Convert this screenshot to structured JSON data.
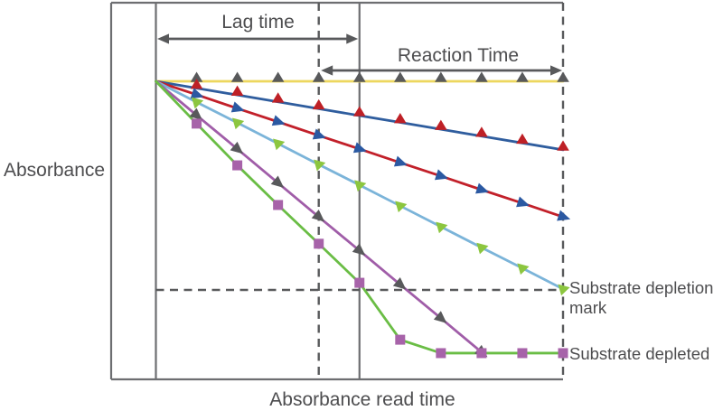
{
  "labels": {
    "y_axis": "Absorbance",
    "x_axis": "Absorbance read time",
    "lag_time": "Lag time",
    "reaction_time": "Reaction Time",
    "depletion_mark": "Substrate depletion mark",
    "depleted": "Substrate depleted"
  },
  "colors": {
    "frame": "#6D6E71",
    "annotation": "#58595B",
    "text": "#4D4D4F"
  },
  "chart_data": {
    "type": "line",
    "title": "",
    "xlabel": "Absorbance read time",
    "ylabel": "Absorbance",
    "x_range_steps": [
      0,
      10
    ],
    "y_range_arbitrary_units": [
      0,
      110
    ],
    "grid": false,
    "legend": "none",
    "annotations": {
      "lag_time_span_steps": [
        0,
        5
      ],
      "reaction_time_span_steps": [
        4,
        10
      ],
      "dashed_vline_step": 4,
      "solid_vline_step": 5,
      "right_edge_dashed_step": 10,
      "substrate_depletion_mark_level": 30,
      "substrate_depleted_level": 8.8
    },
    "series": [
      {
        "name": "flat-line-yellow-gray-up-triangles",
        "line_color": "#EDD75E",
        "marker": "triangle-up",
        "marker_color": "#58595B",
        "marker_rotation_deg": 0,
        "x": [
          0,
          1,
          2,
          3,
          4,
          5,
          6,
          7,
          8,
          9,
          10
        ],
        "values": [
          100,
          100,
          100,
          100,
          100,
          100,
          100,
          100,
          100,
          100,
          100
        ]
      },
      {
        "name": "slow-decline-blue-red-up-triangles",
        "line_color": "#2F5D9E",
        "marker": "triangle-up",
        "marker_color": "#BE2026",
        "marker_rotation_deg": 0,
        "x": [
          0,
          1,
          2,
          3,
          4,
          5,
          6,
          7,
          8,
          9,
          10
        ],
        "values": [
          100,
          97.7,
          95.4,
          93.1,
          90.8,
          88.5,
          86.2,
          83.9,
          81.6,
          79.3,
          77
        ]
      },
      {
        "name": "moderate-decline-red-blue-arrow-triangles",
        "line_color": "#C2202A",
        "marker": "triangle-right",
        "marker_color": "#2B59A2",
        "marker_rotation_deg": 18,
        "x": [
          0,
          1,
          2,
          3,
          4,
          5,
          6,
          7,
          8,
          9,
          10
        ],
        "values": [
          100,
          95.5,
          90.9,
          86.4,
          81.8,
          77.3,
          72.7,
          68.2,
          63.6,
          59.1,
          54.5
        ]
      },
      {
        "name": "fast-decline-skyblue-green-down-triangles",
        "line_color": "#7BB4D9",
        "marker": "triangle-down",
        "marker_color": "#8CC63F",
        "marker_rotation_deg": 15,
        "x": [
          0,
          1,
          2,
          3,
          4,
          5,
          6,
          7,
          8,
          9,
          10
        ],
        "values": [
          100,
          93,
          86.1,
          79.1,
          72.1,
          65.2,
          58.2,
          51.2,
          44.2,
          37.3,
          30.3
        ]
      },
      {
        "name": "steep-decline-purple-gray-arrow-triangles",
        "line_color": "#A05DA8",
        "marker": "triangle-right",
        "marker_color": "#58595B",
        "marker_rotation_deg": 40,
        "x": [
          0,
          1,
          2,
          3,
          4,
          5,
          6,
          7,
          8
        ],
        "values": [
          100,
          88.6,
          77.3,
          65.9,
          54.5,
          43.2,
          31.8,
          20.5,
          9.1
        ]
      },
      {
        "name": "steepest-decline-green-purple-squares-depletes",
        "line_color": "#6ABD45",
        "marker": "square",
        "marker_color": "#A763A9",
        "marker_rotation_deg": 0,
        "x": [
          0,
          1,
          2,
          3,
          4,
          5,
          6,
          7,
          8,
          9,
          10
        ],
        "values": [
          100,
          85.8,
          71.8,
          58.5,
          45.5,
          32.4,
          13.3,
          8.8,
          8.8,
          8.8,
          8.8
        ]
      }
    ]
  }
}
